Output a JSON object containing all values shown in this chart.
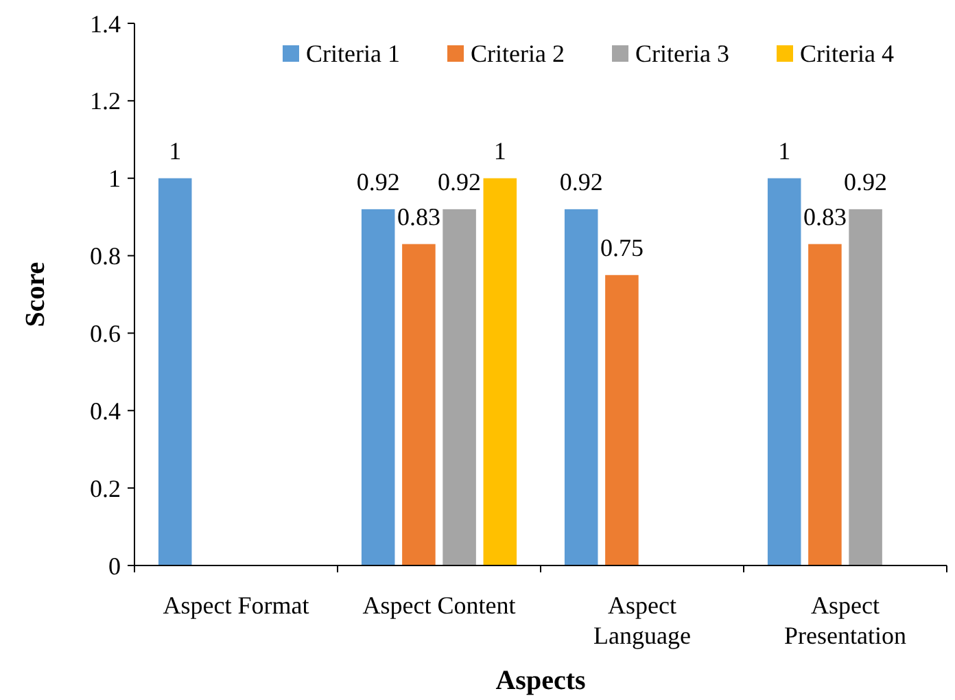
{
  "chart_data": {
    "type": "bar",
    "xlabel": "Aspects",
    "ylabel": "Score",
    "categories": [
      "Aspect Format",
      "Aspect Content",
      "Aspect Language",
      "Aspect Presentation"
    ],
    "series": [
      {
        "name": "Criteria 1",
        "color": "#5b9bd5",
        "values": [
          1,
          0.92,
          0.92,
          1
        ]
      },
      {
        "name": "Criteria 2",
        "color": "#ed7d31",
        "values": [
          null,
          0.83,
          0.75,
          0.83
        ]
      },
      {
        "name": "Criteria 3",
        "color": "#a5a5a5",
        "values": [
          null,
          0.92,
          null,
          0.92
        ]
      },
      {
        "name": "Criteria 4",
        "color": "#ffc000",
        "values": [
          null,
          1,
          null,
          null
        ]
      }
    ],
    "ylim": [
      0,
      1.4
    ],
    "yticks": [
      0,
      0.2,
      0.4,
      0.6,
      0.8,
      1,
      1.2,
      1.4
    ],
    "grid": false,
    "legend": "top right",
    "data_labels": true
  }
}
